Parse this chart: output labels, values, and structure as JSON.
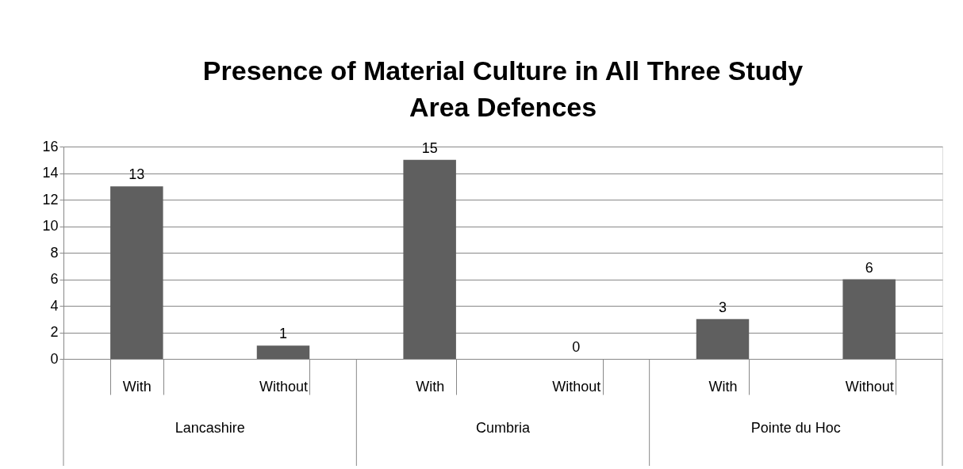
{
  "chart_data": {
    "type": "bar",
    "title": "Presence of Material Culture in All Three Study Area Defences",
    "categories": [
      "With",
      "Without",
      "With",
      "Without",
      "With",
      "Without"
    ],
    "values": [
      13,
      1,
      15,
      0,
      3,
      6
    ],
    "color": "#5f5f5f",
    "ylim": [
      0,
      16
    ],
    "yticks": [
      0,
      2,
      4,
      6,
      8,
      10,
      12,
      14,
      16
    ],
    "grid": "y",
    "data_labels": true,
    "annotations": [
      "Lancashire",
      "Cumbria",
      "Pointe du Hoc"
    ]
  }
}
